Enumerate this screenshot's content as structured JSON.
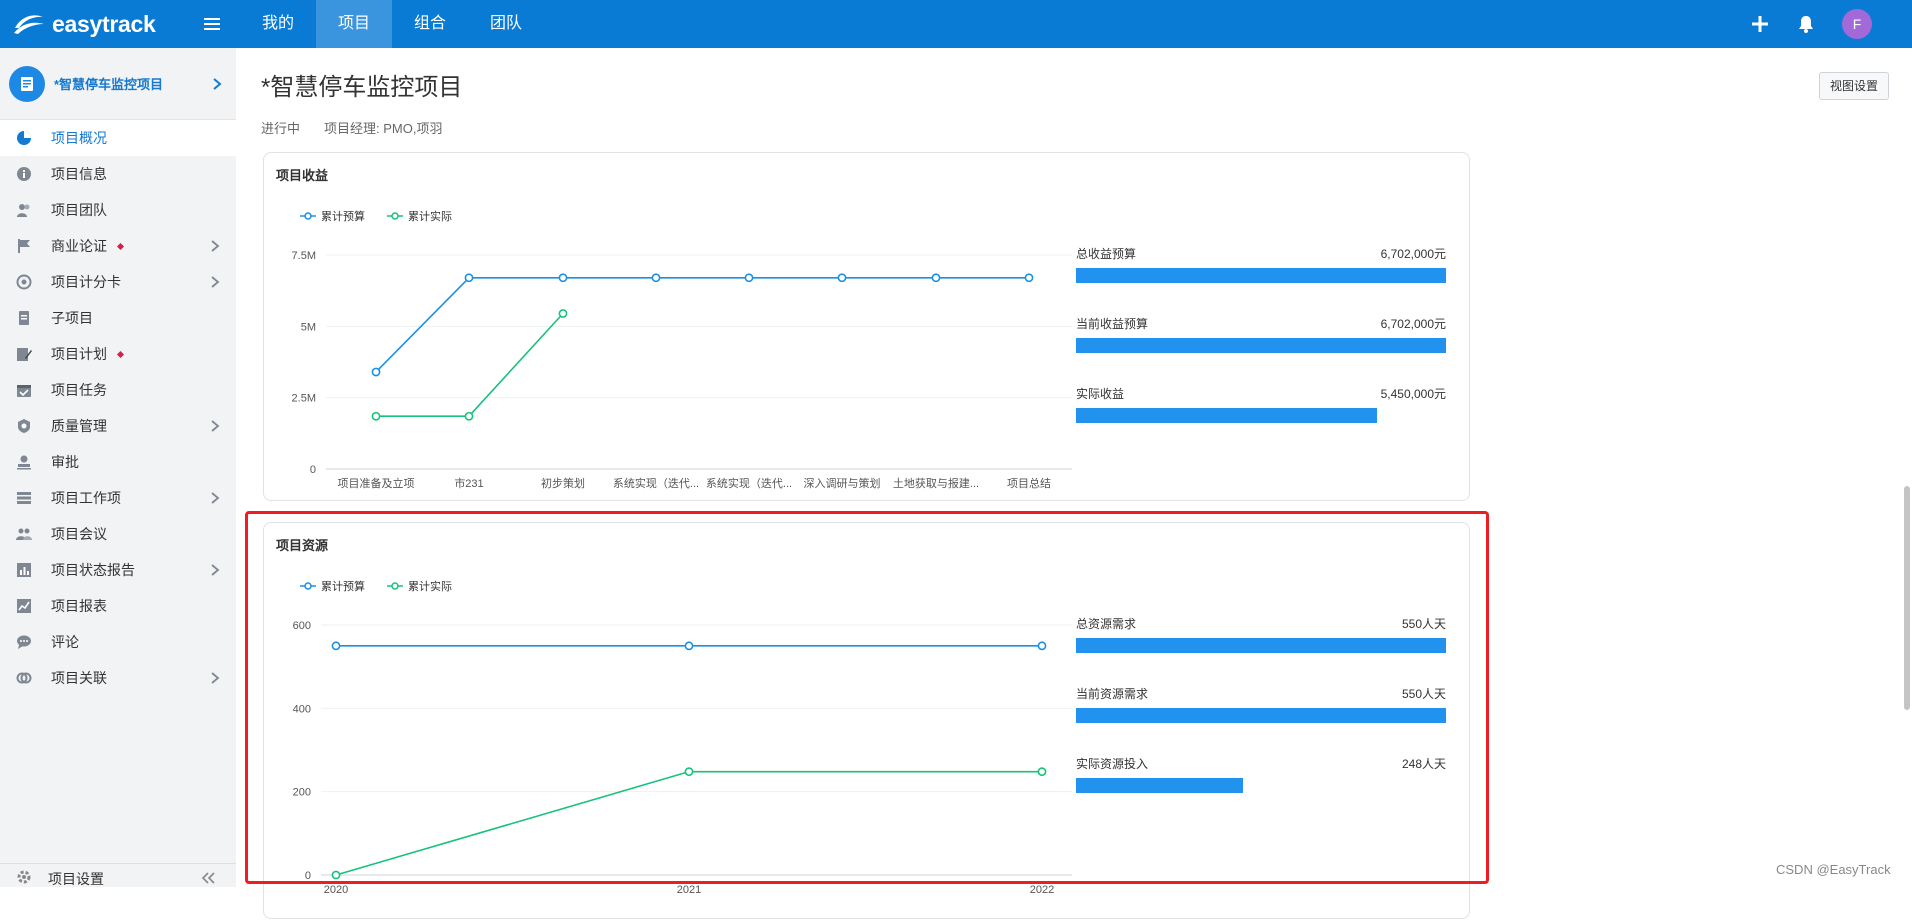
{
  "app": {
    "brand": "easytrack",
    "accent": "#0a7bd4",
    "brand_icon": "easytrack-logo-icon"
  },
  "top_nav": {
    "menu_icon": "hamburger-icon",
    "items": [
      {
        "label": "我的",
        "active": false
      },
      {
        "label": "项目",
        "active": true
      },
      {
        "label": "组合",
        "active": false
      },
      {
        "label": "团队",
        "active": false
      }
    ],
    "actions": {
      "add_icon": "plus-icon",
      "bell_icon": "bell-icon",
      "avatar_initial": "F",
      "avatar_color": "#a26ad8"
    }
  },
  "sidebar": {
    "project_name": "*智慧停车监控项目",
    "items": [
      {
        "label": "项目概况",
        "icon": "pie-chart-icon",
        "active": true,
        "chevron": false,
        "dot": false
      },
      {
        "label": "项目信息",
        "icon": "info-icon",
        "active": false,
        "chevron": false,
        "dot": false
      },
      {
        "label": "项目团队",
        "icon": "team-icon",
        "active": false,
        "chevron": false,
        "dot": false
      },
      {
        "label": "商业论证",
        "icon": "flag-icon",
        "active": false,
        "chevron": true,
        "dot": true
      },
      {
        "label": "项目计分卡",
        "icon": "target-icon",
        "active": false,
        "chevron": true,
        "dot": false
      },
      {
        "label": "子项目",
        "icon": "document-icon",
        "active": false,
        "chevron": false,
        "dot": false
      },
      {
        "label": "项目计划",
        "icon": "plan-edit-icon",
        "active": false,
        "chevron": false,
        "dot": true
      },
      {
        "label": "项目任务",
        "icon": "calendar-check-icon",
        "active": false,
        "chevron": false,
        "dot": false
      },
      {
        "label": "质量管理",
        "icon": "shield-icon",
        "active": false,
        "chevron": true,
        "dot": false
      },
      {
        "label": "审批",
        "icon": "stamp-icon",
        "active": false,
        "chevron": false,
        "dot": false
      },
      {
        "label": "项目工作项",
        "icon": "list-icon",
        "active": false,
        "chevron": true,
        "dot": false
      },
      {
        "label": "项目会议",
        "icon": "meeting-icon",
        "active": false,
        "chevron": false,
        "dot": false
      },
      {
        "label": "项目状态报告",
        "icon": "bar-report-icon",
        "active": false,
        "chevron": true,
        "dot": false
      },
      {
        "label": "项目报表",
        "icon": "line-report-icon",
        "active": false,
        "chevron": false,
        "dot": false
      },
      {
        "label": "评论",
        "icon": "comment-icon",
        "active": false,
        "chevron": false,
        "dot": false
      },
      {
        "label": "项目关联",
        "icon": "link-icon",
        "active": false,
        "chevron": true,
        "dot": false
      }
    ],
    "footer_label": "项目设置",
    "footer_icon": "gear-icon",
    "collapse_icon": "double-chevron-left-icon"
  },
  "page": {
    "title": "*智慧停车监控项目",
    "status": "进行中",
    "manager_label": "项目经理:",
    "manager_value": "PMO,项羽",
    "view_settings": "视图设置"
  },
  "revenue_card": {
    "title": "项目收益",
    "metrics": [
      {
        "label": "总收益预算",
        "value": "6,702,000元",
        "fraction": 1.0
      },
      {
        "label": "当前收益预算",
        "value": "6,702,000元",
        "fraction": 1.0
      },
      {
        "label": "实际收益",
        "value": "5,450,000元",
        "fraction": 0.813
      }
    ]
  },
  "resource_card": {
    "title": "项目资源",
    "metrics": [
      {
        "label": "总资源需求",
        "value": "550人天",
        "fraction": 1.0
      },
      {
        "label": "当前资源需求",
        "value": "550人天",
        "fraction": 1.0
      },
      {
        "label": "实际资源投入",
        "value": "248人天",
        "fraction": 0.451
      }
    ]
  },
  "chart_data": [
    {
      "type": "line",
      "title": "项目收益",
      "categories": [
        "项目准备及立项",
        "市231",
        "初步策划",
        "系统实现（迭代...",
        "系统实现（迭代...",
        "深入调研与策划",
        "土地获取与报建...",
        "项目总结"
      ],
      "series": [
        {
          "name": "累计预算",
          "color": "#1a8fe3",
          "values": [
            3400000,
            6702000,
            6702000,
            6702000,
            6702000,
            6702000,
            6702000,
            6702000
          ]
        },
        {
          "name": "累计实际",
          "color": "#17c27a",
          "values": [
            1850000,
            1850000,
            5450000,
            null,
            null,
            null,
            null,
            null
          ]
        }
      ],
      "yticks": [
        "0",
        "2.5M",
        "5M",
        "7.5M"
      ],
      "ylim": [
        0,
        7500000
      ],
      "grid": true,
      "legend": "top-left"
    },
    {
      "type": "line",
      "title": "项目资源",
      "categories": [
        "2020",
        "2021",
        "2022"
      ],
      "series": [
        {
          "name": "累计预算",
          "color": "#1a8fe3",
          "values": [
            550,
            550,
            550
          ]
        },
        {
          "name": "累计实际",
          "color": "#17c27a",
          "values": [
            0,
            248,
            248
          ]
        }
      ],
      "yticks": [
        "0",
        "200",
        "400",
        "600"
      ],
      "ylim": [
        0,
        600
      ],
      "grid": true,
      "legend": "top-left"
    }
  ],
  "watermark": "CSDN @EasyTrack"
}
